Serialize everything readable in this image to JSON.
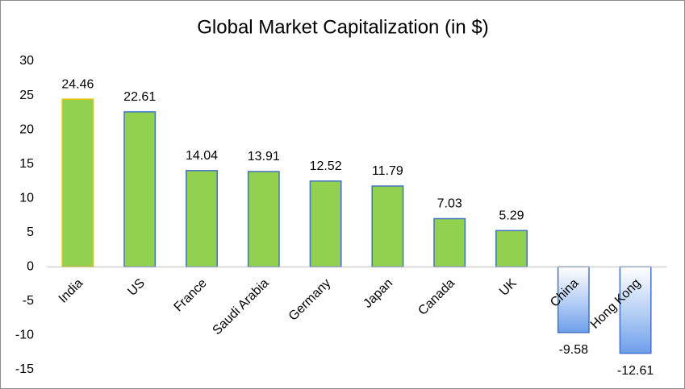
{
  "chart_data": {
    "type": "bar",
    "title": "Global Market Capitalization  (in $)",
    "categories": [
      "India",
      "US",
      "France",
      "Saudi Arabia",
      "Germany",
      "Japan",
      "Canada",
      "UK",
      "China",
      "Hong Kong"
    ],
    "values": [
      24.46,
      22.61,
      14.04,
      13.91,
      12.52,
      11.79,
      7.03,
      5.29,
      -9.58,
      -12.61
    ],
    "colors": [
      "#92d050",
      "#92d050",
      "#92d050",
      "#92d050",
      "#92d050",
      "#92d050",
      "#92d050",
      "#92d050",
      "#6d9eeb",
      "#6d9eeb"
    ],
    "edge_colors": [
      "#f0c000",
      "#4472c4",
      "#4472c4",
      "#4472c4",
      "#4472c4",
      "#4472c4",
      "#4472c4",
      "#4472c4",
      "#4472c4",
      "#4472c4"
    ],
    "ylim": [
      -15,
      30
    ],
    "yticks": [
      -15,
      -10,
      -5,
      0,
      5,
      10,
      15,
      20,
      25,
      30
    ],
    "grid": false
  }
}
